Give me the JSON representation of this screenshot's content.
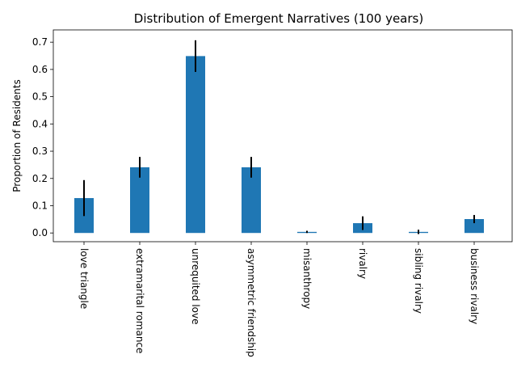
{
  "chart_data": {
    "type": "bar",
    "title": "Distribution of Emergent Narratives (100 years)",
    "xlabel": "",
    "ylabel": "Proportion of Residents",
    "categories": [
      "love triangle",
      "extramarital romance",
      "unrequited love",
      "asymmetric friendship",
      "misanthropy",
      "rivalry",
      "sibling rivalry",
      "business rivalry"
    ],
    "values": [
      0.128,
      0.241,
      0.649,
      0.241,
      0.004,
      0.036,
      0.004,
      0.051
    ],
    "errors": [
      0.066,
      0.038,
      0.058,
      0.038,
      0.004,
      0.025,
      0.008,
      0.015
    ],
    "ylim": [
      -0.032,
      0.745
    ],
    "yticks": [
      "0.0",
      "0.1",
      "0.2",
      "0.3",
      "0.4",
      "0.5",
      "0.6",
      "0.7"
    ],
    "bar_color": "#1f77b4",
    "error_color": "#000000",
    "grid": false,
    "legend": "none"
  }
}
